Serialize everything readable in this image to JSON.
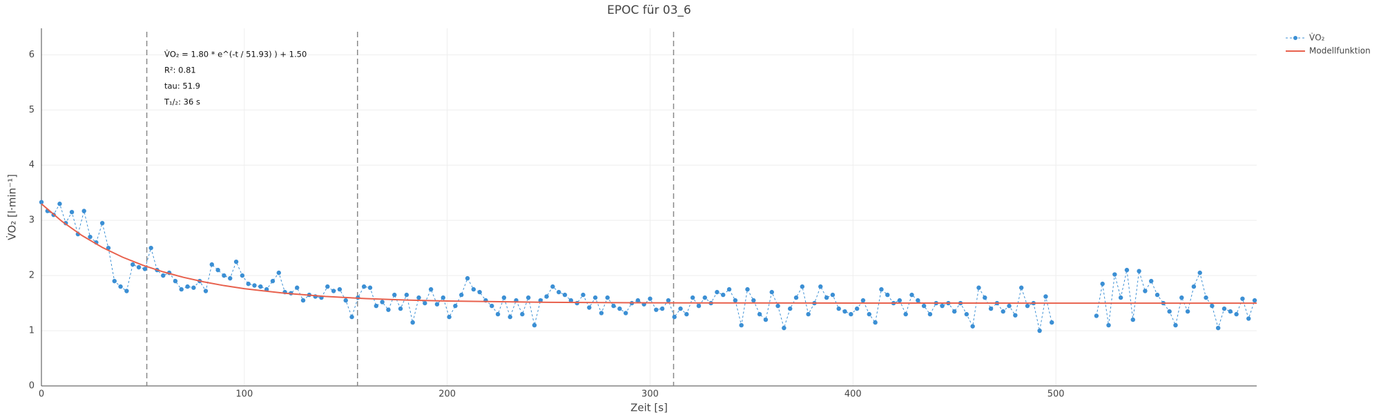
{
  "chart_data": {
    "type": "line",
    "title": "EPOC für 03_6",
    "x_label": "Zeit [s]",
    "y_label": "V̇O₂ [l·min⁻¹]",
    "xlim": [
      0,
      599
    ],
    "ylim": [
      0,
      6.48
    ],
    "xticks": [
      0,
      100,
      200,
      300,
      400,
      500
    ],
    "yticks": [
      0,
      1,
      2,
      3,
      4,
      5,
      6
    ],
    "grid": true,
    "legend": "top-right",
    "vlines": [
      51.93,
      155.79,
      311.58
    ],
    "annotations": [
      "V̇O₂ = 1.80 * e^(-t / 51.93) ) + 1.50",
      "R²: 0.81",
      "tau: 51.9",
      "T₁/₂: 36 s"
    ],
    "series": [
      {
        "name": "V̇O₂",
        "color": "#3b8fd4",
        "style": "dashed-markers",
        "x": [
          0,
          3,
          6,
          9,
          12,
          15,
          18,
          21,
          24,
          27,
          30,
          33,
          36,
          39,
          42,
          45,
          48,
          51,
          54,
          57,
          60,
          63,
          66,
          69,
          72,
          75,
          78,
          81,
          84,
          87,
          90,
          93,
          96,
          99,
          102,
          105,
          108,
          111,
          114,
          117,
          120,
          123,
          126,
          129,
          132,
          135,
          138,
          141,
          144,
          147,
          150,
          153,
          156,
          159,
          162,
          165,
          168,
          171,
          174,
          177,
          180,
          183,
          186,
          189,
          192,
          195,
          198,
          201,
          204,
          207,
          210,
          213,
          216,
          219,
          222,
          225,
          228,
          231,
          234,
          237,
          240,
          243,
          246,
          249,
          252,
          255,
          258,
          261,
          264,
          267,
          270,
          273,
          276,
          279,
          282,
          285,
          288,
          291,
          294,
          297,
          300,
          303,
          306,
          309,
          312,
          315,
          318,
          321,
          324,
          327,
          330,
          333,
          336,
          339,
          342,
          345,
          348,
          351,
          354,
          357,
          360,
          363,
          366,
          369,
          372,
          375,
          378,
          381,
          384,
          387,
          390,
          393,
          396,
          399,
          402,
          405,
          408,
          411,
          414,
          417,
          420,
          423,
          426,
          429,
          432,
          435,
          438,
          441,
          444,
          447,
          450,
          453,
          456,
          459,
          462,
          465,
          468,
          471,
          474,
          477,
          480,
          483,
          486,
          489,
          492,
          495,
          498,
          509,
          520,
          523,
          526,
          529,
          532,
          535,
          538,
          541,
          544,
          547,
          550,
          553,
          556,
          559,
          562,
          565,
          568,
          571,
          574,
          577,
          580,
          583,
          586,
          589,
          592,
          595,
          598
        ],
        "values": [
          3.33,
          3.17,
          3.1,
          3.3,
          2.95,
          3.15,
          2.75,
          3.17,
          2.7,
          2.6,
          2.95,
          2.5,
          1.9,
          1.8,
          1.72,
          2.2,
          2.15,
          2.12,
          2.5,
          2.1,
          2.0,
          2.05,
          1.9,
          1.75,
          1.8,
          1.78,
          1.9,
          1.72,
          2.2,
          2.1,
          2.0,
          1.95,
          2.25,
          2.0,
          1.85,
          1.82,
          1.8,
          1.75,
          1.9,
          2.05,
          1.7,
          1.68,
          1.78,
          1.55,
          1.65,
          1.62,
          1.6,
          1.8,
          1.72,
          1.75,
          1.55,
          1.25,
          1.6,
          1.8,
          1.78,
          1.45,
          1.52,
          1.38,
          1.65,
          1.4,
          1.65,
          1.15,
          1.6,
          1.5,
          1.75,
          1.48,
          1.6,
          1.25,
          1.45,
          1.65,
          1.95,
          1.75,
          1.7,
          1.55,
          1.45,
          1.3,
          1.6,
          1.25,
          1.55,
          1.3,
          1.6,
          1.1,
          1.55,
          1.62,
          1.8,
          1.7,
          1.65,
          1.55,
          1.5,
          1.65,
          1.42,
          1.6,
          1.32,
          1.6,
          1.45,
          1.4,
          1.32,
          1.5,
          1.55,
          1.48,
          1.58,
          1.38,
          1.4,
          1.55,
          1.25,
          1.4,
          1.3,
          1.6,
          1.45,
          1.6,
          1.5,
          1.7,
          1.65,
          1.75,
          1.55,
          1.1,
          1.75,
          1.55,
          1.3,
          1.2,
          1.7,
          1.45,
          1.05,
          1.4,
          1.6,
          1.8,
          1.3,
          1.5,
          1.8,
          1.6,
          1.65,
          1.4,
          1.35,
          1.3,
          1.4,
          1.55,
          1.3,
          1.15,
          1.75,
          1.65,
          1.5,
          1.55,
          1.3,
          1.65,
          1.55,
          1.45,
          1.3,
          1.5,
          1.45,
          1.5,
          1.35,
          1.5,
          1.3,
          1.08,
          1.78,
          1.6,
          1.4,
          1.5,
          1.35,
          1.45,
          1.28,
          1.78,
          1.45,
          1.5,
          1.0,
          1.62,
          1.15,
          null,
          1.27,
          1.85,
          1.1,
          2.02,
          1.6,
          2.1,
          1.2,
          2.08,
          1.72,
          1.9,
          1.65,
          1.5,
          1.35,
          1.1,
          1.6,
          1.35,
          1.8,
          2.05,
          1.6,
          1.45,
          1.05,
          1.4,
          1.35,
          1.3,
          1.58,
          1.22,
          1.55
        ]
      },
      {
        "name": "Modellfunktion",
        "color": "#e8604c",
        "style": "solid",
        "x": [
          0,
          10,
          20,
          30,
          40,
          50,
          60,
          70,
          80,
          90,
          100,
          120,
          140,
          160,
          180,
          200,
          250,
          300,
          400,
          500,
          599
        ],
        "values": [
          3.3,
          2.985,
          2.725,
          2.51,
          2.333,
          2.187,
          2.067,
          1.968,
          1.886,
          1.818,
          1.762,
          1.679,
          1.621,
          1.583,
          1.556,
          1.538,
          1.515,
          1.506,
          1.501,
          1.5,
          1.5
        ]
      }
    ]
  }
}
